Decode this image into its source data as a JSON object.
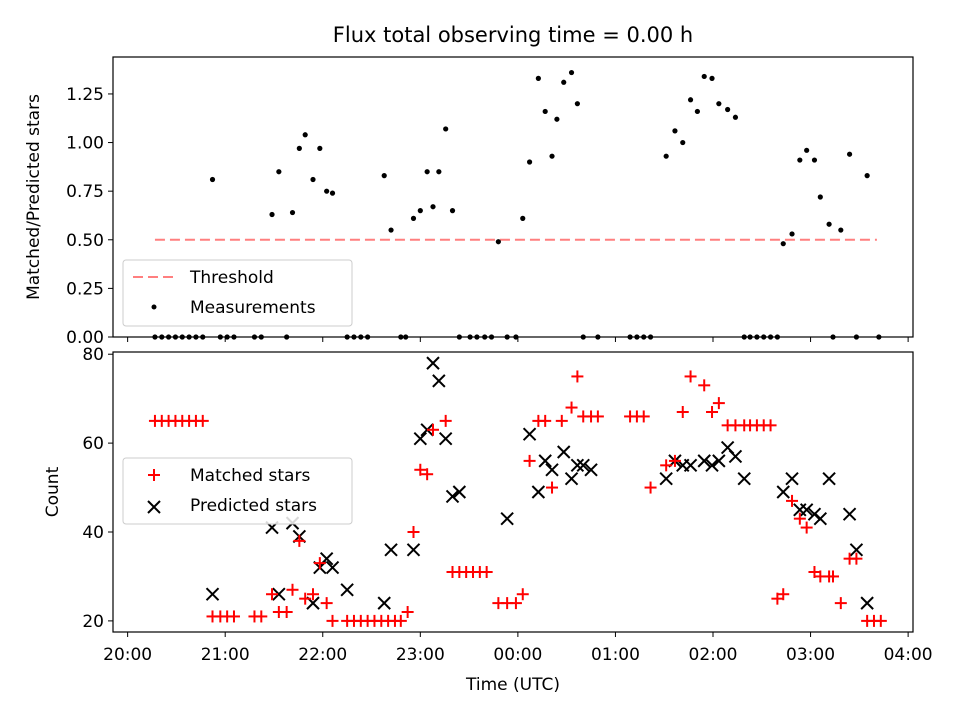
{
  "title": "Flux total observing time = 0.00 h",
  "xlabel": "Time (UTC)",
  "x_tick_labels": [
    "20:00",
    "21:00",
    "22:00",
    "23:00",
    "00:00",
    "01:00",
    "02:00",
    "03:00",
    "04:00"
  ],
  "top": {
    "ylabel": "Matched/Predicted stars",
    "ytick_labels": [
      "0.00",
      "0.25",
      "0.50",
      "0.75",
      "1.00",
      "1.25"
    ],
    "legend": {
      "threshold_label": "Threshold",
      "measurements_label": "Measurements"
    },
    "colors": {
      "threshold": "#ff7f7f",
      "measurements": "#000000"
    }
  },
  "bottom": {
    "ylabel": "Count",
    "ytick_labels": [
      "20",
      "40",
      "60",
      "80"
    ],
    "legend": {
      "matched_label": "Matched stars",
      "predicted_label": "Predicted stars"
    },
    "colors": {
      "matched": "#ff0000",
      "predicted": "#000000"
    }
  },
  "chart_data": [
    {
      "type": "scatter",
      "title": "Flux total observing time = 0.00 h",
      "xlabel": "",
      "ylabel": "Matched/Predicted stars",
      "x_unit": "hours since 20:00 UTC",
      "xlim": [
        -0.15,
        8.05
      ],
      "ylim": [
        0,
        1.44
      ],
      "threshold": {
        "y": 0.5,
        "x_range": [
          0.28,
          7.68
        ],
        "style": "dashed"
      },
      "legend_position": "lower-left",
      "series": [
        {
          "name": "Measurements",
          "x": [
            0.28,
            0.35,
            0.42,
            0.49,
            0.56,
            0.63,
            0.7,
            0.77,
            0.87,
            0.95,
            1.02,
            1.09,
            1.3,
            1.37,
            1.48,
            1.55,
            1.63,
            1.69,
            1.76,
            1.82,
            1.9,
            1.97,
            2.04,
            2.1,
            2.25,
            2.32,
            2.39,
            2.46,
            2.63,
            2.7,
            2.8,
            2.85,
            2.93,
            3.0,
            3.07,
            3.13,
            3.19,
            3.26,
            3.33,
            3.4,
            3.51,
            3.58,
            3.66,
            3.73,
            3.8,
            3.89,
            3.98,
            4.05,
            4.12,
            4.21,
            4.28,
            4.35,
            4.4,
            4.47,
            4.55,
            4.61,
            4.67,
            4.82,
            5.15,
            5.22,
            5.29,
            5.36,
            5.52,
            5.61,
            5.69,
            5.77,
            5.84,
            5.91,
            5.99,
            6.06,
            6.15,
            6.23,
            6.32,
            6.38,
            6.45,
            6.52,
            6.59,
            6.66,
            6.72,
            6.81,
            6.89,
            6.96,
            7.04,
            7.1,
            7.19,
            7.23,
            7.31,
            7.4,
            7.47,
            7.58,
            7.7
          ],
          "y": [
            0.0,
            0.0,
            0.0,
            0.0,
            0.0,
            0.0,
            0.0,
            0.0,
            0.81,
            0.0,
            0.0,
            0.0,
            0.0,
            0.0,
            0.63,
            0.85,
            0.0,
            0.64,
            0.97,
            1.04,
            0.81,
            0.97,
            0.75,
            0.74,
            0.0,
            0.0,
            0.0,
            0.0,
            0.83,
            0.55,
            0.0,
            0.0,
            0.61,
            0.65,
            0.85,
            0.67,
            0.85,
            1.07,
            0.65,
            0.0,
            0.0,
            0.0,
            0.0,
            0.0,
            0.49,
            0.0,
            0.0,
            0.61,
            0.9,
            1.33,
            1.16,
            0.93,
            1.12,
            1.31,
            1.36,
            1.2,
            0.0,
            0.0,
            0.0,
            0.0,
            0.0,
            0.0,
            0.93,
            1.06,
            1.0,
            1.22,
            1.16,
            1.34,
            1.33,
            1.2,
            1.17,
            1.13,
            0.0,
            0.0,
            0.0,
            0.0,
            0.0,
            0.0,
            0.48,
            0.53,
            0.91,
            0.96,
            0.91,
            0.72,
            0.58,
            0.0,
            0.55,
            0.94,
            0.0,
            0.83,
            0.0
          ]
        }
      ]
    },
    {
      "type": "scatter",
      "xlabel": "Time (UTC)",
      "ylabel": "Count",
      "x_unit": "hours since 20:00 UTC",
      "x_tick_labels": [
        "20:00",
        "21:00",
        "22:00",
        "23:00",
        "00:00",
        "01:00",
        "02:00",
        "03:00",
        "04:00"
      ],
      "xlim": [
        -0.15,
        8.05
      ],
      "ylim": [
        17.5,
        80.5
      ],
      "legend_position": "center-left",
      "series": [
        {
          "name": "Matched stars",
          "marker": "+",
          "color": "#ff0000",
          "x": [
            0.28,
            0.35,
            0.42,
            0.49,
            0.56,
            0.63,
            0.7,
            0.77,
            0.87,
            0.95,
            1.02,
            1.09,
            1.3,
            1.37,
            1.48,
            1.55,
            1.63,
            1.69,
            1.76,
            1.82,
            1.9,
            1.97,
            2.04,
            2.1,
            2.25,
            2.32,
            2.39,
            2.46,
            2.53,
            2.6,
            2.67,
            2.74,
            2.8,
            2.87,
            2.93,
            3.0,
            3.07,
            3.13,
            3.26,
            3.33,
            3.4,
            3.47,
            3.54,
            3.61,
            3.68,
            3.8,
            3.89,
            3.98,
            4.05,
            4.12,
            4.21,
            4.28,
            4.35,
            4.45,
            4.55,
            4.61,
            4.67,
            4.75,
            4.82,
            5.15,
            5.22,
            5.29,
            5.36,
            5.52,
            5.61,
            5.69,
            5.77,
            5.91,
            5.99,
            6.06,
            6.15,
            6.23,
            6.32,
            6.38,
            6.45,
            6.52,
            6.59,
            6.66,
            6.72,
            6.81,
            6.89,
            6.96,
            7.04,
            7.1,
            7.19,
            7.23,
            7.31,
            7.4,
            7.47,
            7.58,
            7.65,
            7.72
          ],
          "y": [
            65,
            65,
            65,
            65,
            65,
            65,
            65,
            65,
            21,
            21,
            21,
            21,
            21,
            21,
            26,
            22,
            22,
            27,
            38,
            25,
            26,
            33,
            24,
            20,
            20,
            20,
            20,
            20,
            20,
            20,
            20,
            20,
            20,
            22,
            40,
            54,
            53,
            63,
            65,
            31,
            31,
            31,
            31,
            31,
            31,
            24,
            24,
            24,
            26,
            56,
            65,
            65,
            50,
            65,
            68,
            75,
            66,
            66,
            66,
            66,
            66,
            66,
            50,
            55,
            56,
            67,
            75,
            73,
            67,
            69,
            64,
            64,
            64,
            64,
            64,
            64,
            64,
            25,
            26,
            47,
            43,
            41,
            31,
            30,
            30,
            30,
            24,
            34,
            34,
            20,
            20,
            20
          ]
        },
        {
          "name": "Predicted stars",
          "marker": "x",
          "color": "#000000",
          "x": [
            0.87,
            1.48,
            1.55,
            1.69,
            1.76,
            1.9,
            1.97,
            2.04,
            2.1,
            2.25,
            2.63,
            2.7,
            2.93,
            3.0,
            3.07,
            3.13,
            3.19,
            3.26,
            3.33,
            3.4,
            3.89,
            4.12,
            4.21,
            4.28,
            4.35,
            4.47,
            4.55,
            4.61,
            4.67,
            4.75,
            5.52,
            5.61,
            5.69,
            5.77,
            5.91,
            5.99,
            6.06,
            6.15,
            6.23,
            6.32,
            6.72,
            6.81,
            6.89,
            6.96,
            7.04,
            7.1,
            7.19,
            7.4,
            7.47,
            7.58
          ],
          "y": [
            26,
            41,
            26,
            42,
            39,
            24,
            32,
            34,
            32,
            27,
            24,
            36,
            36,
            61,
            63,
            78,
            74,
            61,
            48,
            49,
            43,
            62,
            49,
            56,
            54,
            58,
            52,
            55,
            55,
            54,
            52,
            56,
            55,
            55,
            56,
            55,
            56,
            59,
            57,
            52,
            49,
            52,
            45,
            45,
            44,
            43,
            52,
            44,
            36,
            24
          ]
        }
      ]
    }
  ]
}
